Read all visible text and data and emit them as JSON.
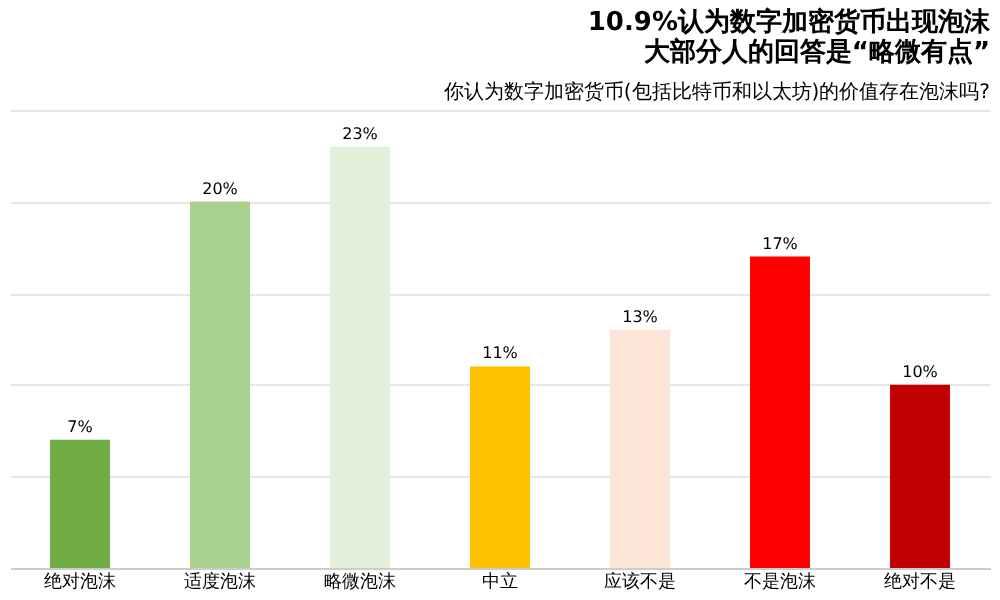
{
  "chart_data": {
    "type": "bar",
    "title": "你认为数字加密货币(包括比特币和以太坊)的价值存在泡沫吗?",
    "categories": [
      "绝对泡沫",
      "适度泡沫",
      "略微泡沫",
      "中立",
      "应该不是",
      "不是泡沫",
      "绝对不是"
    ],
    "values": [
      7,
      20,
      23,
      11,
      13,
      17,
      10
    ],
    "colors": [
      "#70ad47",
      "#a9d18e",
      "#e2f0d9",
      "#ffc000",
      "#fbe5d6",
      "#ff0000",
      "#c00000"
    ],
    "value_labels": [
      "7%",
      "20%",
      "23%",
      "11%",
      "13%",
      "17%",
      "10%"
    ],
    "ylim": [
      0,
      25
    ],
    "yticks": [
      0,
      5,
      10,
      15,
      20,
      25
    ],
    "grid": "y",
    "tick_labels": "x",
    "annotations": [
      "10.9%认为数字加密货币出现泡沫",
      "大部分人的回答是“略微有点”"
    ]
  }
}
